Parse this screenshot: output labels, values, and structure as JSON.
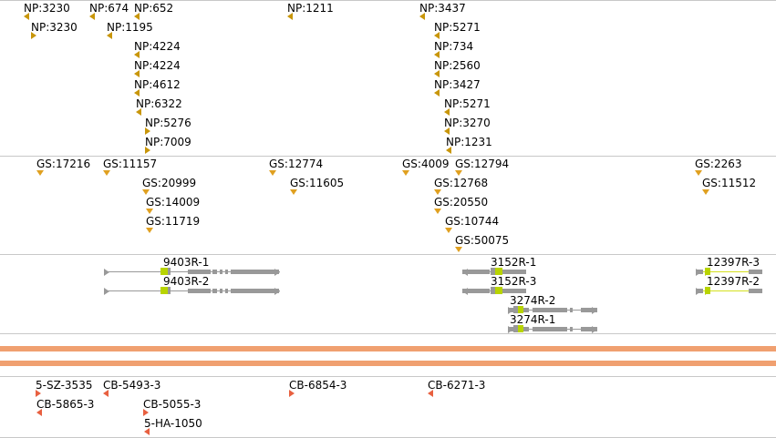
{
  "colors": {
    "np_marker": "#c8960a",
    "gs_marker": "#e0a020",
    "gene_body": "#999999",
    "gene_accent": "#b8d400",
    "gene_accent_alt": "#d4e020",
    "band": "#f0a070",
    "cb_marker": "#e86040",
    "separator": "#c8c8c8"
  },
  "np_features": [
    {
      "label": "NP:3230",
      "dir": "left"
    },
    {
      "label": "NP:674",
      "dir": "left"
    },
    {
      "label": "NP:652",
      "dir": "left"
    },
    {
      "label": "NP:1211",
      "dir": "left"
    },
    {
      "label": "NP:3437",
      "dir": "left"
    },
    {
      "label": "NP:3230",
      "dir": "right"
    },
    {
      "label": "NP:1195",
      "dir": "left"
    },
    {
      "label": "NP:5271",
      "dir": "left"
    },
    {
      "label": "NP:4224",
      "dir": "left"
    },
    {
      "label": "NP:734",
      "dir": "left"
    },
    {
      "label": "NP:4224",
      "dir": "left"
    },
    {
      "label": "NP:2560",
      "dir": "left"
    },
    {
      "label": "NP:4612",
      "dir": "left"
    },
    {
      "label": "NP:3427",
      "dir": "left"
    },
    {
      "label": "NP:6322",
      "dir": "left"
    },
    {
      "label": "NP:5271",
      "dir": "left"
    },
    {
      "label": "NP:5276",
      "dir": "right"
    },
    {
      "label": "NP:3270",
      "dir": "left"
    },
    {
      "label": "NP:7009",
      "dir": "right"
    },
    {
      "label": "NP:1231",
      "dir": "left"
    }
  ],
  "gs_features": [
    {
      "label": "GS:17216"
    },
    {
      "label": "GS:11157"
    },
    {
      "label": "GS:12774"
    },
    {
      "label": "GS:4009"
    },
    {
      "label": "GS:12794"
    },
    {
      "label": "GS:2263"
    },
    {
      "label": "GS:20999"
    },
    {
      "label": "GS:11605"
    },
    {
      "label": "GS:12768"
    },
    {
      "label": "GS:11512"
    },
    {
      "label": "GS:14009"
    },
    {
      "label": "GS:20550"
    },
    {
      "label": "GS:11719"
    },
    {
      "label": "GS:10744"
    },
    {
      "label": "GS:50075"
    }
  ],
  "genes": [
    {
      "label": "9403R-1",
      "strand": "+"
    },
    {
      "label": "9403R-2",
      "strand": "+"
    },
    {
      "label": "3152R-1",
      "strand": "-"
    },
    {
      "label": "3152R-3",
      "strand": "-"
    },
    {
      "label": "12397R-3",
      "strand": "+"
    },
    {
      "label": "12397R-2",
      "strand": "+"
    },
    {
      "label": "3274R-2",
      "strand": "+"
    },
    {
      "label": "3274R-1",
      "strand": "+"
    }
  ],
  "cb_features": [
    {
      "label": "5-SZ-3535",
      "dir": "right"
    },
    {
      "label": "CB-5493-3",
      "dir": "left"
    },
    {
      "label": "CB-6854-3",
      "dir": "right"
    },
    {
      "label": "CB-6271-3",
      "dir": "left"
    },
    {
      "label": "CB-5865-3",
      "dir": "left"
    },
    {
      "label": "CB-5055-3",
      "dir": "right"
    },
    {
      "label": "5-HA-1050",
      "dir": "left"
    }
  ]
}
